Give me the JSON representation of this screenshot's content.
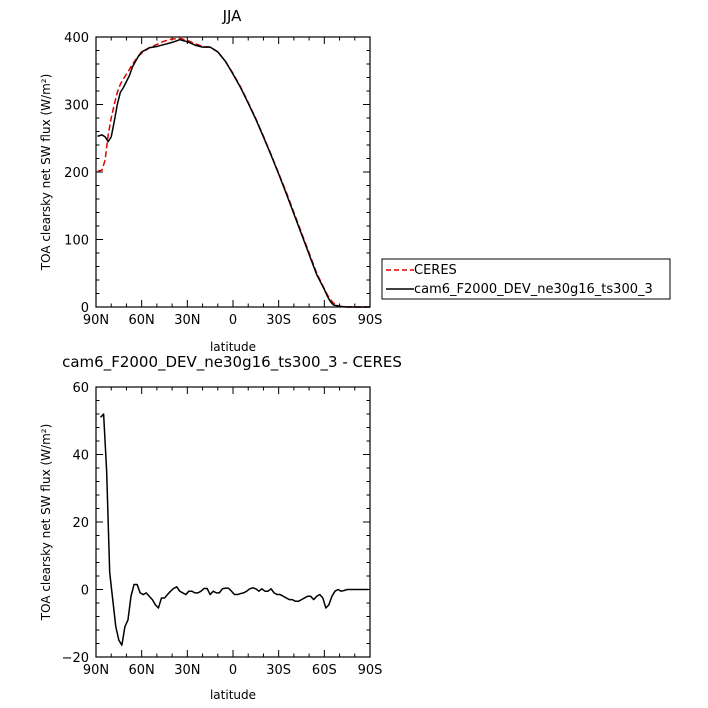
{
  "colors": {
    "ceres": "#e00000",
    "model": "#000000",
    "axis": "#000000"
  },
  "chart_data": [
    {
      "type": "line",
      "title": "JJA",
      "xlabel": "latitude",
      "ylabel": "TOA clearsky net SW flux (W/m²)",
      "xlim": [
        90,
        -90
      ],
      "ylim": [
        0,
        400
      ],
      "xticks": [
        90,
        60,
        30,
        0,
        -30,
        -60,
        -90
      ],
      "xtick_labels": [
        "90N",
        "60N",
        "30N",
        "0",
        "30S",
        "60S",
        "90S"
      ],
      "yticks": [
        0,
        100,
        200,
        300,
        400
      ],
      "ytick_labels": [
        "0",
        "100",
        "200",
        "300",
        "400"
      ],
      "legend": {
        "placement": "right",
        "entries": [
          "CERES",
          "cam6_F2000_DEV_ne30g16_ts300_3"
        ]
      },
      "series": [
        {
          "name": "CERES",
          "style": "dashed",
          "color": "#e00000",
          "x": [
            89,
            86,
            84,
            82,
            80,
            78,
            76,
            74,
            72,
            70,
            68,
            66,
            64,
            62,
            60,
            55,
            50,
            45,
            40,
            35,
            30,
            25,
            20,
            15,
            10,
            5,
            0,
            -5,
            -10,
            -15,
            -20,
            -25,
            -30,
            -35,
            -40,
            -45,
            -50,
            -55,
            -60,
            -62,
            -64,
            -66,
            -68,
            -70,
            -75,
            -80,
            -85,
            -90
          ],
          "y": [
            201,
            203,
            218,
            255,
            280,
            300,
            318,
            330,
            338,
            345,
            352,
            360,
            366,
            372,
            376,
            384,
            389,
            394,
            397,
            398,
            395,
            390,
            386,
            385,
            378,
            364,
            346,
            326,
            303,
            279,
            253,
            226,
            198,
            170,
            140,
            110,
            80,
            50,
            27,
            18,
            11,
            6,
            3,
            1,
            0,
            0,
            0,
            0
          ]
        },
        {
          "name": "cam6_F2000_DEV_ne30g16_ts300_3",
          "style": "solid",
          "color": "#000000",
          "x": [
            89,
            86,
            84,
            82,
            80,
            78,
            76,
            74,
            72,
            70,
            68,
            66,
            64,
            62,
            60,
            55,
            50,
            45,
            40,
            35,
            30,
            25,
            20,
            15,
            10,
            5,
            0,
            -5,
            -10,
            -15,
            -20,
            -25,
            -30,
            -35,
            -40,
            -45,
            -50,
            -55,
            -60,
            -62,
            -64,
            -66,
            -68,
            -70,
            -75,
            -80,
            -85,
            -90
          ],
          "y": [
            253,
            255,
            252,
            245,
            252,
            275,
            300,
            318,
            325,
            334,
            343,
            356,
            364,
            372,
            378,
            384,
            386,
            389,
            392,
            396,
            393,
            388,
            385,
            385,
            378,
            364,
            345,
            325,
            302,
            278,
            252,
            225,
            197,
            168,
            138,
            108,
            78,
            48,
            26,
            16,
            8,
            3,
            2,
            1,
            0,
            0,
            0,
            0
          ]
        }
      ]
    },
    {
      "type": "line",
      "title": "cam6_F2000_DEV_ne30g16_ts300_3 - CERES",
      "xlabel": "latitude",
      "ylabel": "TOA clearsky net SW flux (W/m²)",
      "xlim": [
        90,
        -90
      ],
      "ylim": [
        -20,
        60
      ],
      "xticks": [
        90,
        60,
        30,
        0,
        -30,
        -60,
        -90
      ],
      "xtick_labels": [
        "90N",
        "60N",
        "30N",
        "0",
        "30S",
        "60S",
        "90S"
      ],
      "yticks": [
        -20,
        0,
        20,
        40,
        60
      ],
      "ytick_labels": [
        "−20",
        "0",
        "20",
        "40",
        "60"
      ],
      "series": [
        {
          "style": "solid",
          "color": "#000000",
          "x": [
            87,
            85,
            83,
            81,
            79,
            77,
            75,
            73,
            71,
            69,
            67,
            65,
            63,
            61,
            59,
            57,
            55,
            53,
            51,
            49,
            47,
            45,
            43,
            41,
            39,
            37,
            35,
            33,
            31,
            29,
            27,
            25,
            23,
            21,
            19,
            17,
            15,
            13,
            11,
            9,
            7,
            5,
            3,
            1,
            -1,
            -3,
            -5,
            -7,
            -9,
            -11,
            -13,
            -15,
            -17,
            -19,
            -21,
            -23,
            -25,
            -27,
            -29,
            -31,
            -33,
            -35,
            -37,
            -39,
            -41,
            -43,
            -45,
            -47,
            -49,
            -51,
            -53,
            -55,
            -57,
            -59,
            -61,
            -63,
            -65,
            -67,
            -69,
            -71,
            -73,
            -75,
            -77,
            -79,
            -81,
            -83,
            -85,
            -87,
            -89
          ],
          "y": [
            51,
            52,
            35,
            5,
            -3,
            -11,
            -15,
            -16.5,
            -11,
            -9,
            -2,
            1.5,
            1.5,
            -1,
            -1.5,
            -1,
            -2,
            -3,
            -4.5,
            -5.5,
            -2.5,
            -2.5,
            -1.5,
            -0.5,
            0.3,
            0.8,
            -0.5,
            -1,
            -1.5,
            -0.5,
            -0.5,
            -1,
            -1,
            -0.5,
            0.3,
            0.3,
            -1.5,
            -0.5,
            -1,
            -1,
            0.2,
            0.4,
            0.4,
            -0.5,
            -1.5,
            -1.5,
            -1.2,
            -1,
            -0.5,
            0.2,
            0.5,
            0.2,
            -0.5,
            0.2,
            -0.5,
            -0.5,
            0.2,
            -1,
            -1.5,
            -1.5,
            -2,
            -2.5,
            -3,
            -3,
            -3.5,
            -3.5,
            -3,
            -2.5,
            -2,
            -2,
            -3,
            -2,
            -1.5,
            -2.5,
            -5.5,
            -4.5,
            -2,
            -0.5,
            0,
            -0.5,
            -0.3,
            0,
            0,
            0,
            0,
            0,
            0,
            0,
            0
          ]
        }
      ]
    }
  ]
}
